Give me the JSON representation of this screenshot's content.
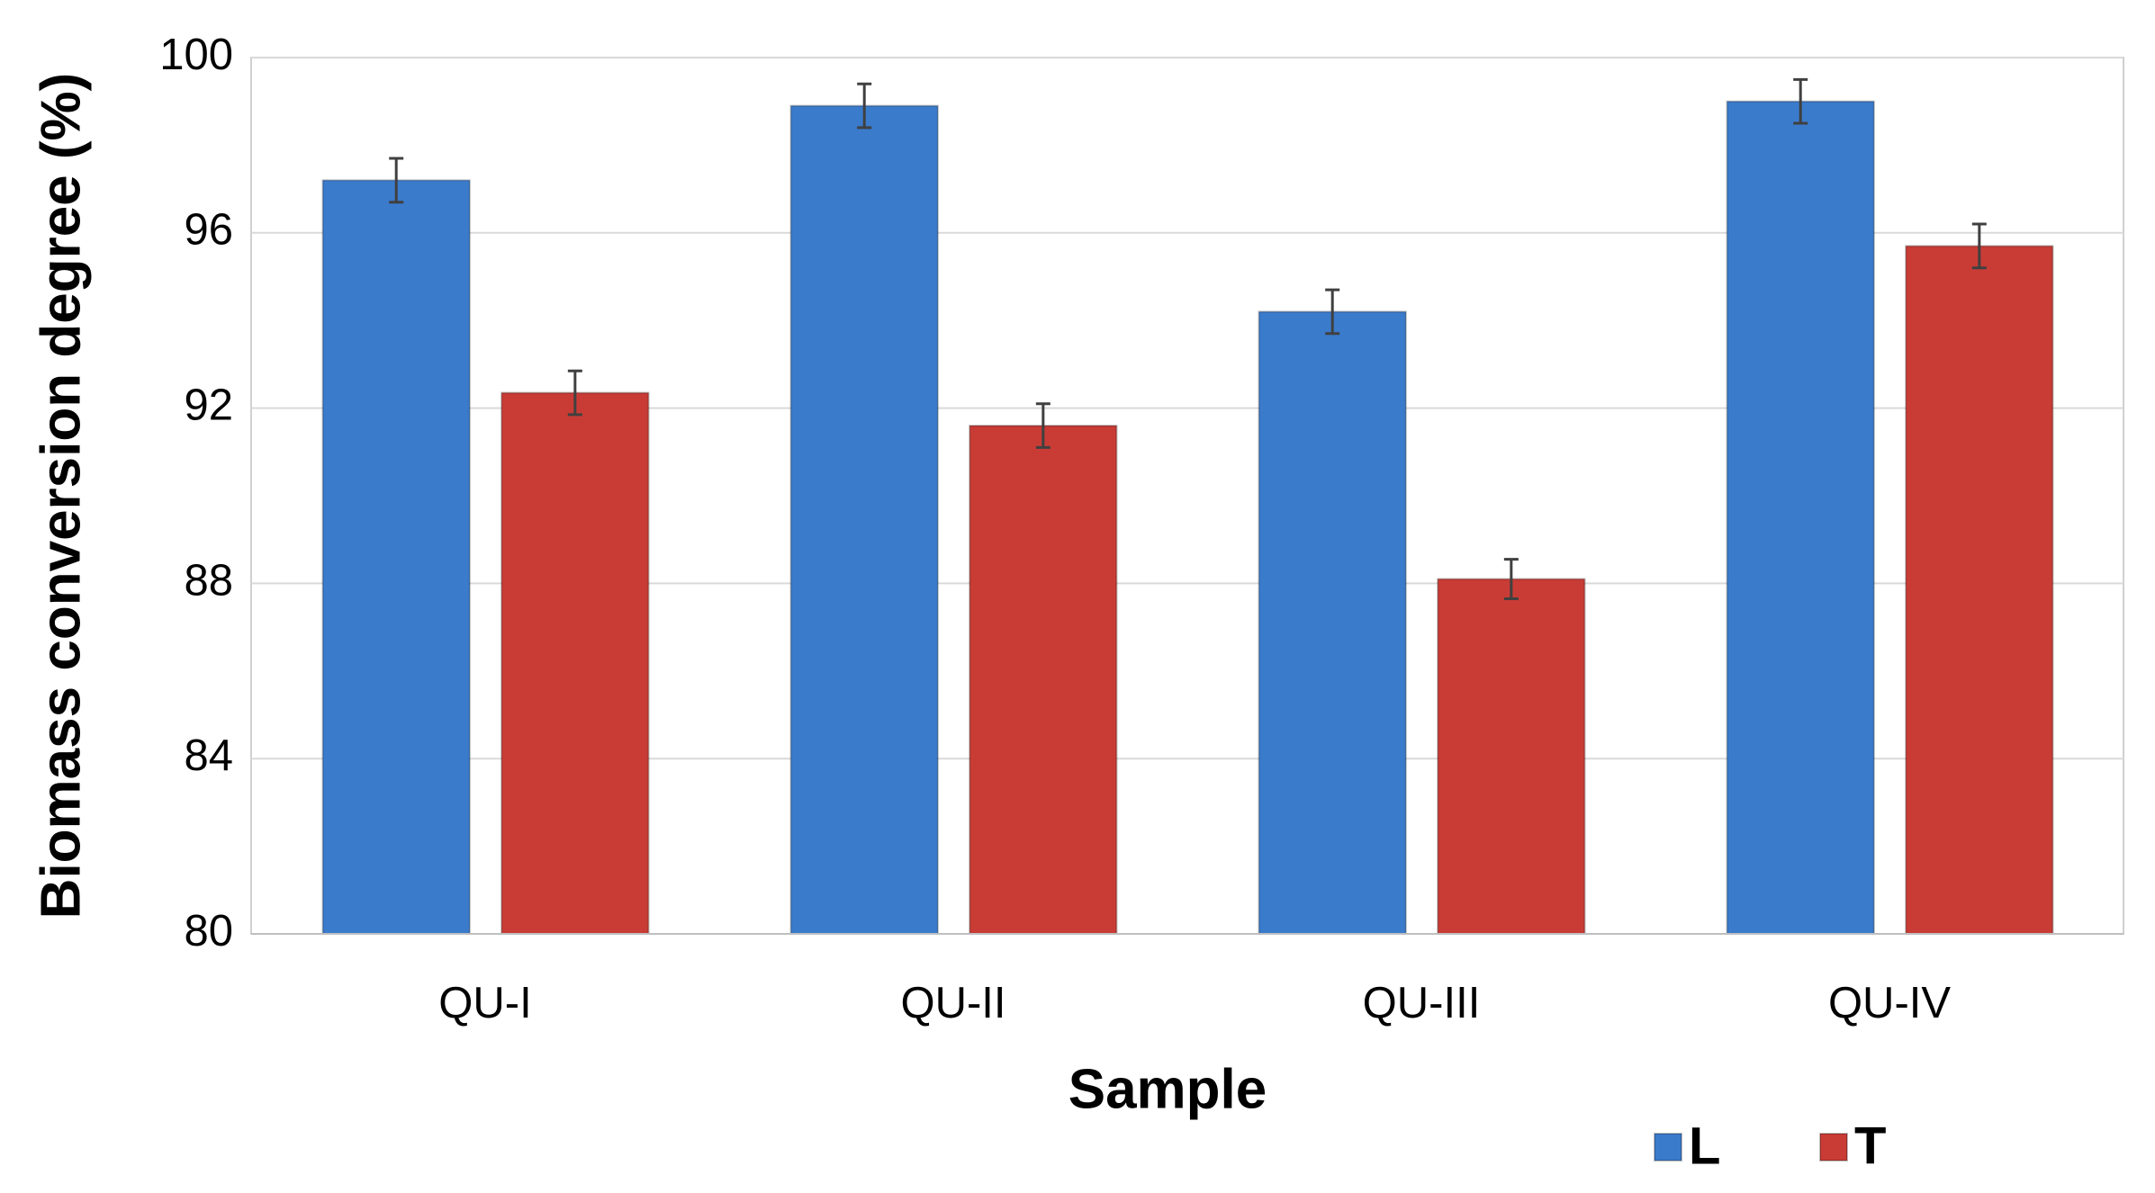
{
  "chart_data": {
    "type": "bar",
    "x_label": "Sample",
    "y_label": "Biomass conversion degree (%)",
    "categories": [
      "QU-I",
      "QU-II",
      "QU-III",
      "QU-IV"
    ],
    "series": [
      {
        "name": "L",
        "color": "#3b7bcc",
        "values": [
          97.2,
          98.9,
          94.2,
          99.0
        ],
        "errors": [
          0.5,
          0.5,
          0.5,
          0.5
        ]
      },
      {
        "name": "T",
        "color": "#c93c36",
        "values": [
          92.35,
          91.6,
          88.1,
          95.7
        ],
        "errors": [
          0.5,
          0.5,
          0.45,
          0.5
        ]
      }
    ],
    "ylim": [
      80,
      100
    ],
    "yticks": [
      80,
      84,
      88,
      92,
      96,
      100
    ],
    "grid": true,
    "legend": "bottom-right"
  }
}
